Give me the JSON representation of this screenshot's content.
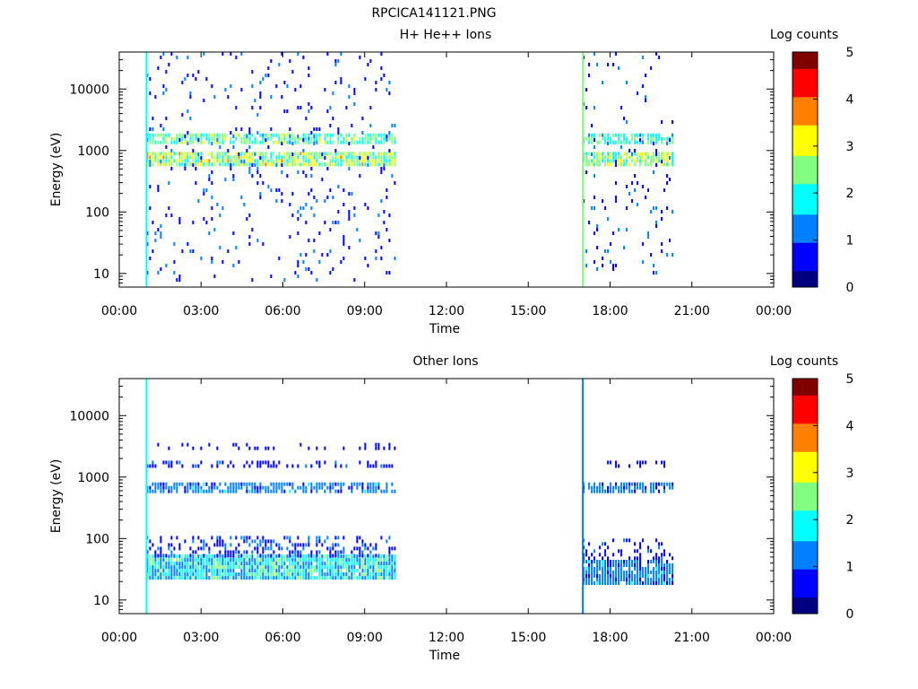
{
  "figure_title": "RPCICA141121.PNG",
  "colormap": [
    "#000080",
    "#0000ff",
    "#0080ff",
    "#00ffff",
    "#80ff80",
    "#ffff00",
    "#ff8000",
    "#ff0000",
    "#800000"
  ],
  "axis_color": "#000000",
  "chart_data": [
    {
      "type": "heatmap",
      "title": "H+ He++ Ions",
      "xlabel": "Time",
      "ylabel": "Energy (eV)",
      "x_tick_labels": [
        "00:00",
        "03:00",
        "06:00",
        "09:00",
        "12:00",
        "15:00",
        "18:00",
        "21:00",
        "00:00"
      ],
      "x_tick_hours": [
        0,
        3,
        6,
        9,
        12,
        15,
        18,
        21,
        24
      ],
      "xlim_hours": [
        0,
        24
      ],
      "y_scale": "log",
      "ylim": [
        6,
        40000
      ],
      "y_tick_labels": [
        "10",
        "100",
        "1000",
        "10000"
      ],
      "y_tick_values": [
        10,
        100,
        1000,
        10000
      ],
      "colorbar": {
        "label": "Log counts",
        "min": 0,
        "max": 5,
        "tick_labels": [
          "0",
          "1",
          "2",
          "3",
          "4",
          "5"
        ],
        "tick_values": [
          0,
          1,
          2,
          3,
          4,
          5
        ]
      },
      "data_intervals_hours": [
        [
          1.0,
          10.1
        ],
        [
          17.0,
          20.3
        ]
      ],
      "vertical_lines": [
        {
          "t_hours": 1.0,
          "level": 2.0
        },
        {
          "t_hours": 17.0,
          "level": 2.3
        }
      ],
      "bands": [
        {
          "t_hours": [
            1.0,
            10.1
          ],
          "energy_eV": [
            1300,
            1900
          ],
          "density": 0.8,
          "level": [
            1.5,
            3.0
          ]
        },
        {
          "t_hours": [
            1.0,
            10.1
          ],
          "energy_eV": [
            560,
            950
          ],
          "density": 0.92,
          "level": [
            1.8,
            3.5
          ]
        },
        {
          "t_hours": [
            1.0,
            10.1
          ],
          "energy_eV": [
            8,
            40000
          ],
          "density": 0.07,
          "level": [
            0.5,
            1.2
          ]
        },
        {
          "t_hours": [
            17.0,
            20.3
          ],
          "energy_eV": [
            1300,
            1900
          ],
          "density": 0.75,
          "level": [
            1.5,
            2.6
          ]
        },
        {
          "t_hours": [
            17.0,
            20.3
          ],
          "energy_eV": [
            560,
            950
          ],
          "density": 0.85,
          "level": [
            1.8,
            3.3
          ]
        },
        {
          "t_hours": [
            17.0,
            20.3
          ],
          "energy_eV": [
            8,
            40000
          ],
          "density": 0.06,
          "level": [
            0.5,
            1.2
          ]
        }
      ]
    },
    {
      "type": "heatmap",
      "title": "Other Ions",
      "xlabel": "Time",
      "ylabel": "Energy (eV)",
      "x_tick_labels": [
        "00:00",
        "03:00",
        "06:00",
        "09:00",
        "12:00",
        "15:00",
        "18:00",
        "21:00",
        "00:00"
      ],
      "x_tick_hours": [
        0,
        3,
        6,
        9,
        12,
        15,
        18,
        21,
        24
      ],
      "xlim_hours": [
        0,
        24
      ],
      "y_scale": "log",
      "ylim": [
        6,
        40000
      ],
      "y_tick_labels": [
        "10",
        "100",
        "1000",
        "10000"
      ],
      "y_tick_values": [
        10,
        100,
        1000,
        10000
      ],
      "colorbar": {
        "label": "Log counts",
        "min": 0,
        "max": 5,
        "tick_labels": [
          "0",
          "1",
          "2",
          "3",
          "4",
          "5"
        ],
        "tick_values": [
          0,
          1,
          2,
          3,
          4,
          5
        ]
      },
      "data_intervals_hours": [
        [
          1.0,
          10.1
        ],
        [
          17.0,
          20.3
        ]
      ],
      "vertical_lines": [
        {
          "t_hours": 1.0,
          "level": 1.8
        },
        {
          "t_hours": 17.0,
          "level": 1.5
        }
      ],
      "bands": [
        {
          "t_hours": [
            1.0,
            10.1
          ],
          "energy_eV": [
            22,
            55
          ],
          "density": 0.95,
          "level": [
            1.0,
            2.5
          ]
        },
        {
          "t_hours": [
            1.0,
            10.1
          ],
          "energy_eV": [
            55,
            110
          ],
          "density": 0.35,
          "level": [
            0.4,
            1.2
          ]
        },
        {
          "t_hours": [
            1.0,
            10.1
          ],
          "energy_eV": [
            620,
            820
          ],
          "density": 0.7,
          "level": [
            0.8,
            1.6
          ]
        },
        {
          "t_hours": [
            1.0,
            10.1
          ],
          "energy_eV": [
            1550,
            1850
          ],
          "density": 0.35,
          "level": [
            0.4,
            1.0
          ]
        },
        {
          "t_hours": [
            1.0,
            10.1
          ],
          "energy_eV": [
            3000,
            3600
          ],
          "density": 0.15,
          "level": [
            0.3,
            0.8
          ]
        },
        {
          "t_hours": [
            17.0,
            20.3
          ],
          "energy_eV": [
            18,
            45
          ],
          "density": 0.9,
          "level": [
            0.8,
            1.6
          ]
        },
        {
          "t_hours": [
            17.0,
            20.3
          ],
          "energy_eV": [
            45,
            100
          ],
          "density": 0.3,
          "level": [
            0.4,
            1.0
          ]
        },
        {
          "t_hours": [
            17.0,
            20.3
          ],
          "energy_eV": [
            620,
            820
          ],
          "density": 0.65,
          "level": [
            0.8,
            1.5
          ]
        },
        {
          "t_hours": [
            17.0,
            20.3
          ],
          "energy_eV": [
            1550,
            1850
          ],
          "density": 0.3,
          "level": [
            0.4,
            0.9
          ]
        }
      ]
    }
  ]
}
